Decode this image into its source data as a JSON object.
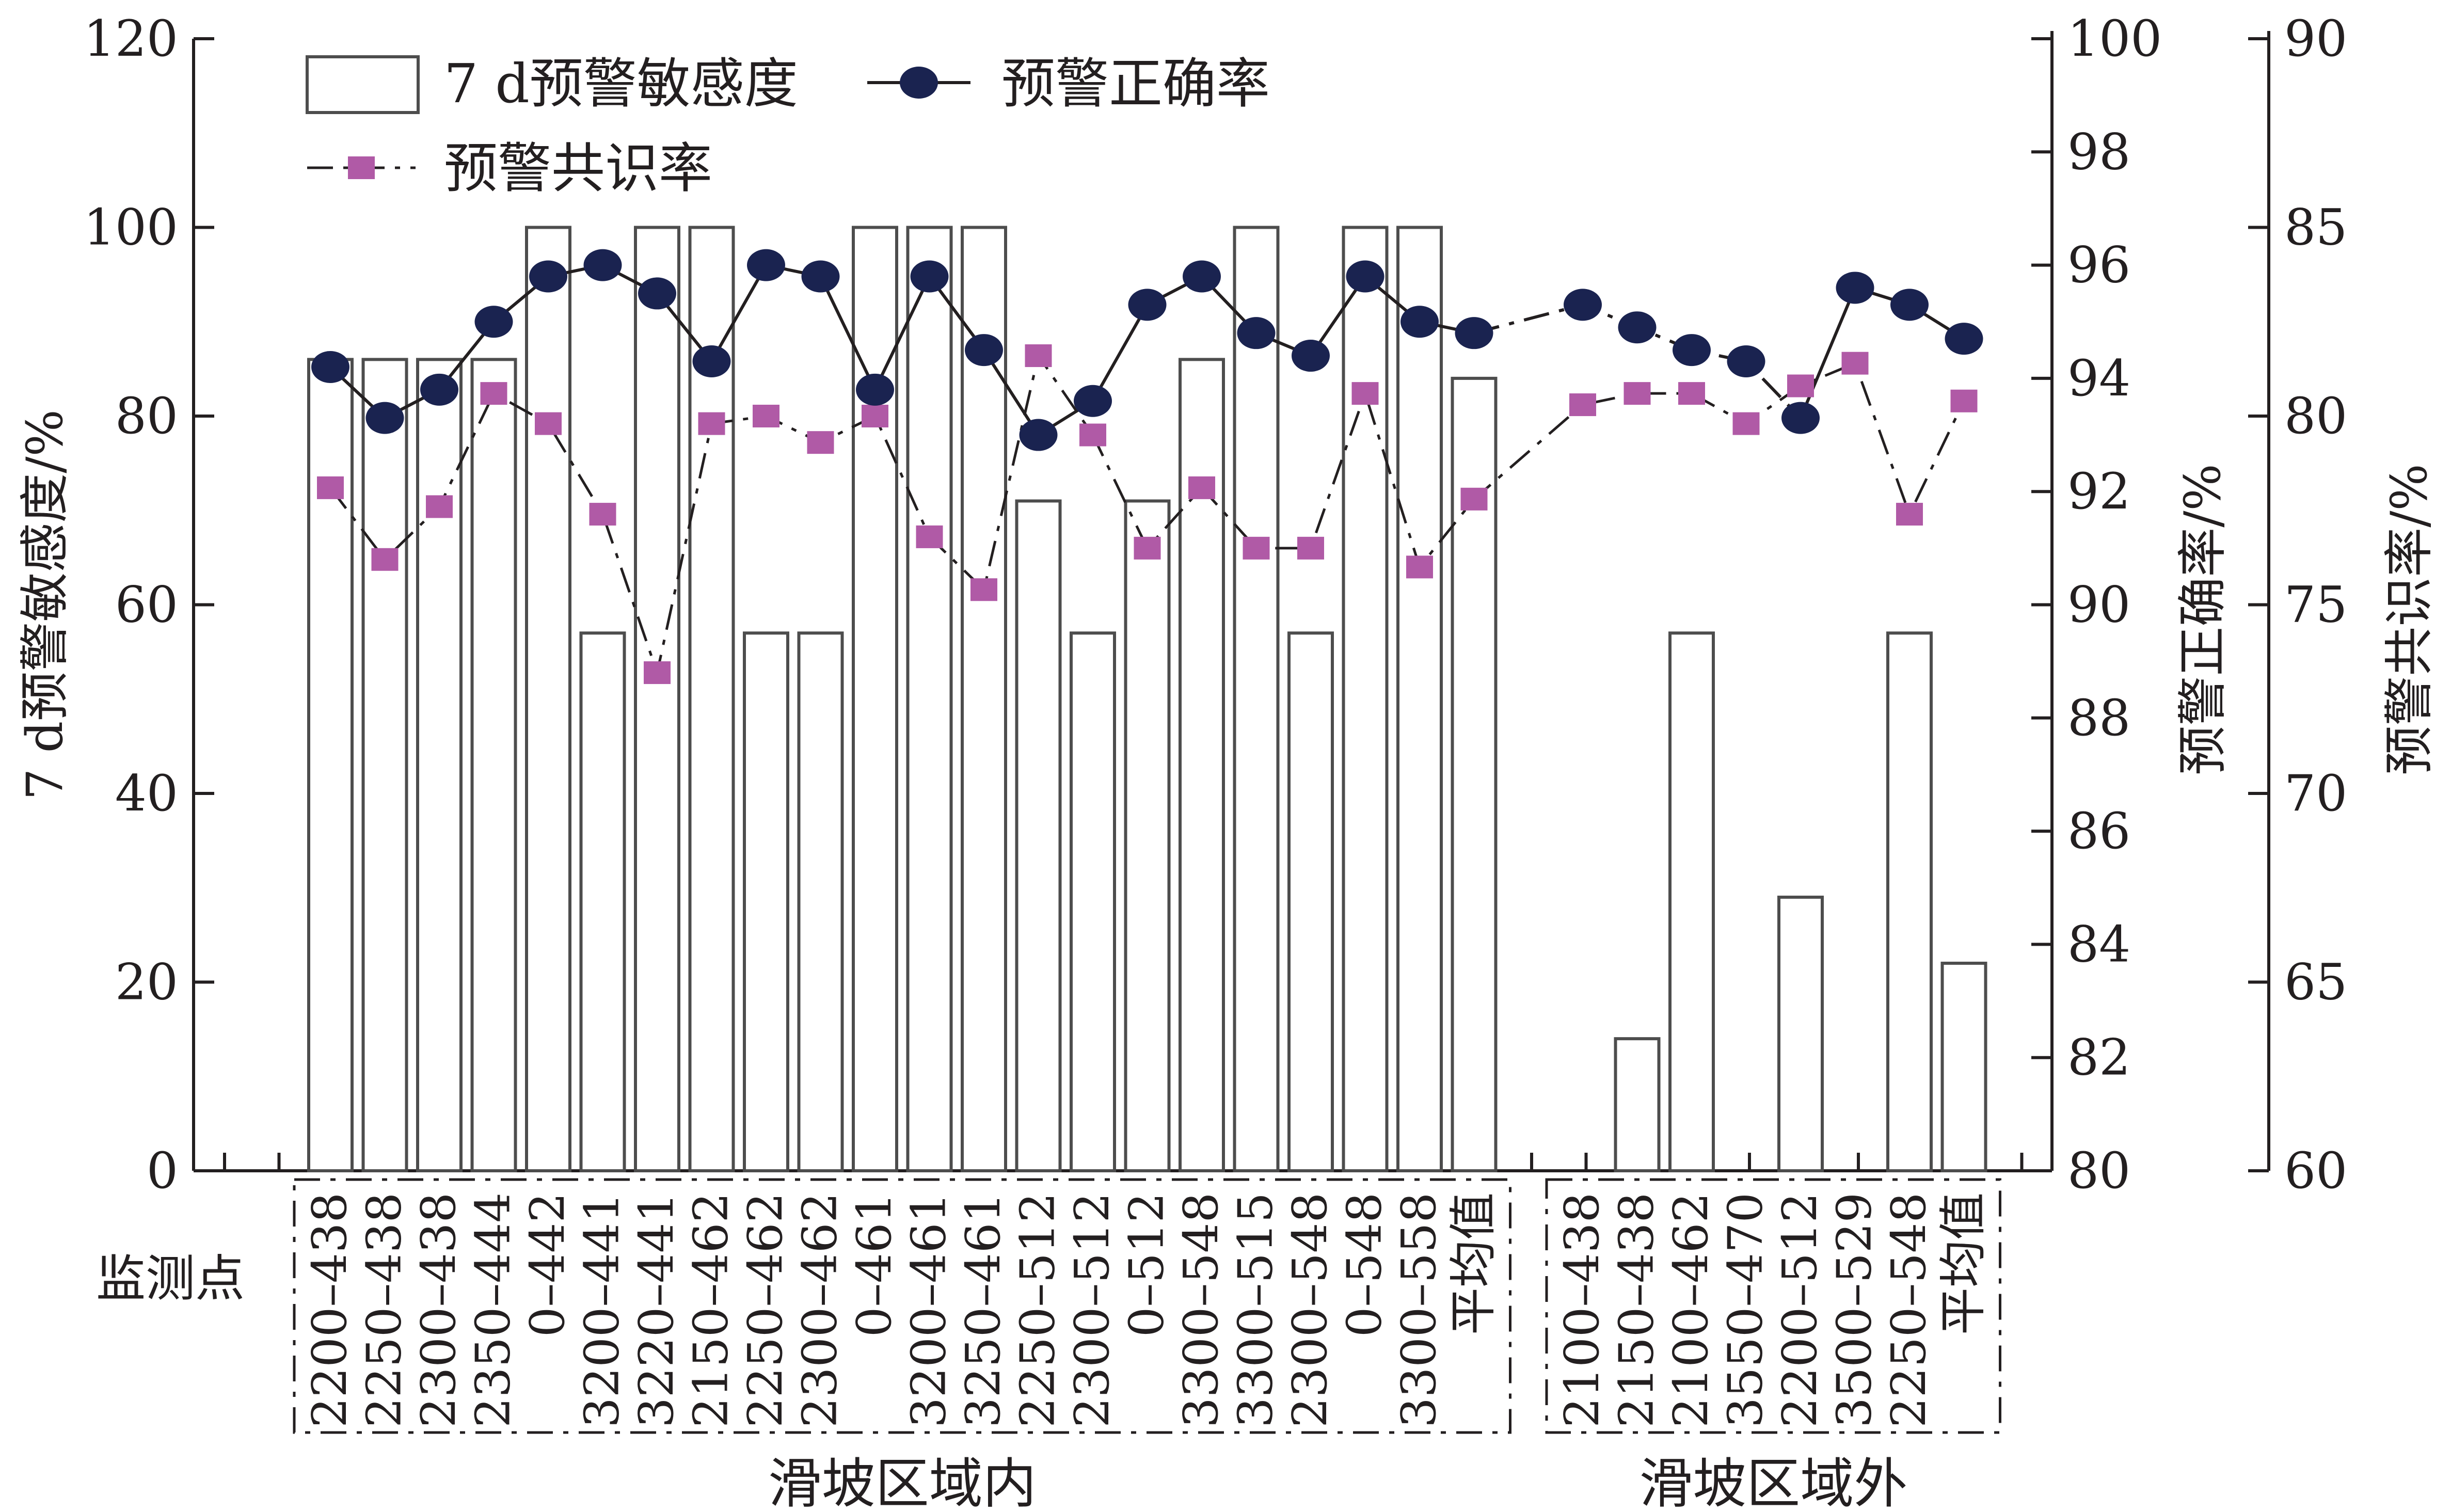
{
  "chart_data": {
    "type": "bar",
    "xlabel": "监测点",
    "categories": [
      "2200–438",
      "2250–438",
      "2300–438",
      "2350–444",
      "0–442",
      "3200–441",
      "3220–441",
      "2150–462",
      "2250–462",
      "2300–462",
      "0–461",
      "3200–461",
      "3250–461",
      "2250–512",
      "2300–512",
      "0–512",
      "3300–548",
      "3300–515",
      "2300–548",
      "0–548",
      "3300–558",
      "平均值",
      "2100–438",
      "2150–438",
      "2100–462",
      "3550–470",
      "2200–512",
      "3500–529",
      "2250–548",
      "平均值"
    ],
    "groups": [
      {
        "label": "滑坡区域内",
        "start": 0,
        "end": 21
      },
      {
        "label": "滑坡区域外",
        "start": 22,
        "end": 29
      }
    ],
    "series": [
      {
        "name": "7 d预警敏感度",
        "type": "bar",
        "axis": "left",
        "values": [
          86,
          86,
          86,
          86,
          100,
          57,
          100,
          100,
          57,
          57,
          100,
          100,
          100,
          71,
          57,
          71,
          86,
          100,
          57,
          100,
          100,
          84,
          0,
          14,
          57,
          0,
          29,
          0,
          57,
          22
        ]
      },
      {
        "name": "预警正确率",
        "type": "line",
        "axis": "right1",
        "marker": "ellipse",
        "values": [
          94.2,
          93.3,
          93.8,
          95.0,
          95.8,
          96.0,
          95.5,
          94.3,
          96.0,
          95.8,
          93.8,
          95.8,
          94.5,
          93.0,
          93.6,
          95.3,
          95.8,
          94.8,
          94.4,
          95.8,
          95.0,
          94.8,
          95.3,
          94.9,
          94.5,
          94.3,
          93.3,
          95.6,
          95.3,
          94.7
        ],
        "segments": [
          [
            0,
            21
          ],
          [
            21,
            26
          ],
          [
            26,
            29
          ]
        ]
      },
      {
        "name": "预警共识率",
        "type": "line",
        "axis": "right2",
        "marker": "square",
        "values": [
          78.1,
          76.2,
          77.6,
          80.6,
          79.8,
          77.4,
          73.2,
          79.8,
          80.0,
          79.3,
          80.0,
          76.8,
          75.4,
          81.6,
          79.5,
          76.5,
          78.1,
          76.5,
          76.5,
          80.6,
          76.0,
          77.8,
          80.3,
          80.6,
          80.6,
          79.8,
          80.8,
          81.4,
          77.4,
          80.4
        ]
      }
    ],
    "axes": {
      "left": {
        "label": "7 d预警敏感度/%",
        "ylim": [
          0,
          120
        ],
        "ticks": [
          "0",
          "20",
          "40",
          "60",
          "80",
          "100",
          "120"
        ]
      },
      "right1": {
        "label": "预警正确率/%",
        "ylim": [
          80,
          100
        ],
        "ticks": [
          "80",
          "82",
          "84",
          "86",
          "88",
          "90",
          "92",
          "94",
          "96",
          "98",
          "100"
        ]
      },
      "right2": {
        "label": "预警共识率/%",
        "ylim": [
          60,
          90
        ],
        "ticks": [
          "60",
          "65",
          "70",
          "75",
          "80",
          "85",
          "90"
        ]
      }
    },
    "legend": {
      "placement": "top-left",
      "items": [
        {
          "label": "7 d预警敏感度",
          "series": 0
        },
        {
          "label": "预警正确率",
          "series": 1
        },
        {
          "label": "预警共识率",
          "series": 2
        }
      ]
    },
    "colors": {
      "bar_stroke": "#4d4d4d",
      "accuracy": "#1a2350",
      "consensus": "#b05aa6",
      "axis": "#231f20"
    },
    "grid": false
  }
}
